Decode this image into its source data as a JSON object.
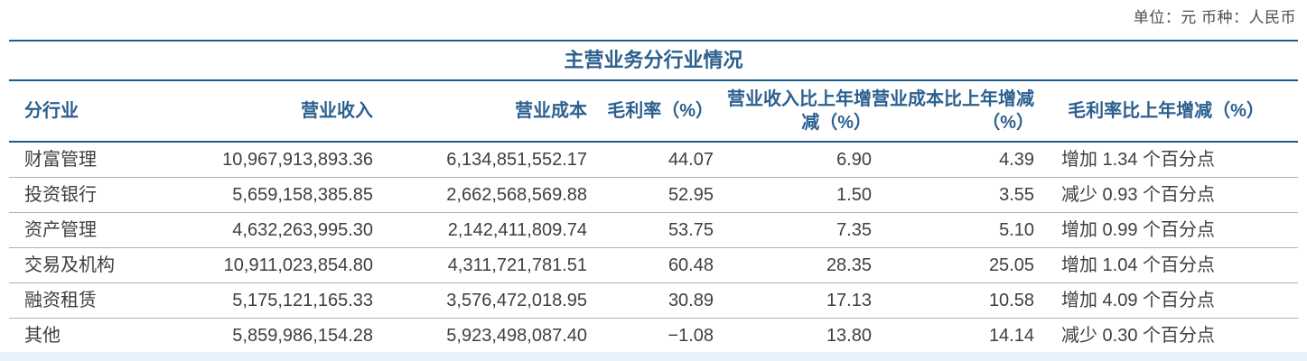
{
  "meta": {
    "unit_label": "单位：元  币种：人民币"
  },
  "table": {
    "title": "主营业务分行业情况",
    "columns": [
      "分行业",
      "营业收入",
      "营业成本",
      "毛利率（%）",
      "营业收入比上年增减（%）",
      "营业成本比上年增减（%）",
      "毛利率比上年增减（%）"
    ],
    "rows": [
      [
        "财富管理",
        "10,967,913,893.36",
        "6,134,851,552.17",
        "44.07",
        "6.90",
        "4.39",
        "增加 1.34 个百分点"
      ],
      [
        "投资银行",
        "5,659,158,385.85",
        "2,662,568,569.88",
        "52.95",
        "1.50",
        "3.55",
        "减少 0.93 个百分点"
      ],
      [
        "资产管理",
        "4,632,263,995.30",
        "2,142,411,809.74",
        "53.75",
        "7.35",
        "5.10",
        "增加 0.99 个百分点"
      ],
      [
        "交易及机构",
        "10,911,023,854.80",
        "4,311,721,781.51",
        "60.48",
        "28.35",
        "25.05",
        "增加 1.04 个百分点"
      ],
      [
        "融资租赁",
        "5,175,121,165.33",
        "3,576,472,018.95",
        "30.89",
        "17.13",
        "10.58",
        "增加 4.09 个百分点"
      ],
      [
        "其他",
        "5,859,986,154.28",
        "5,923,498,087.40",
        "−1.08",
        "13.80",
        "14.14",
        "减少 0.30 个百分点"
      ]
    ]
  },
  "colors": {
    "rule_dark": "#1e5c8c",
    "header_blue": "#2c608f",
    "separator_light": "#9fb6c6",
    "body_text": "#3f3f3f",
    "unit_text": "#4d4d4d",
    "band_background": "#e8f2fa"
  }
}
